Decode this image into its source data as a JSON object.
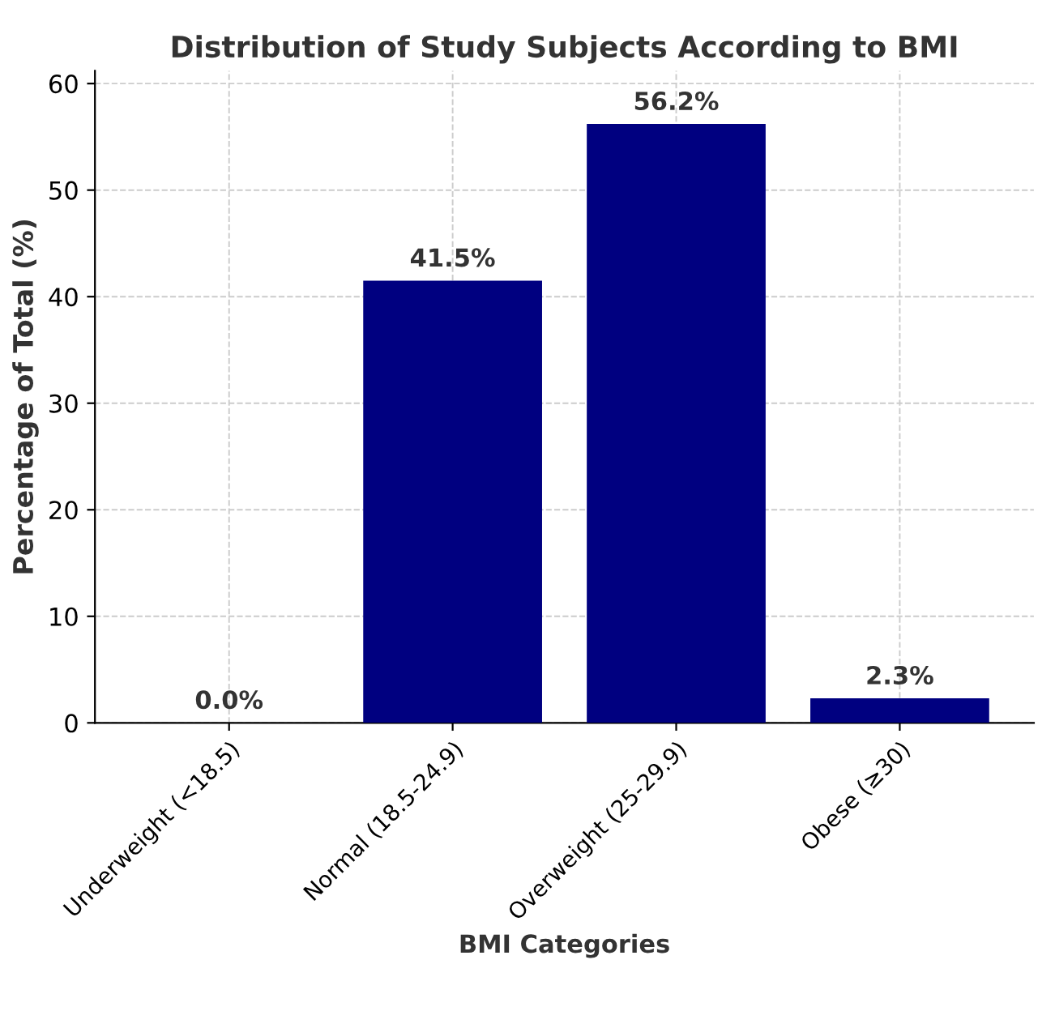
{
  "chart_data": {
    "type": "bar",
    "title": "Distribution of Study Subjects According to BMI",
    "xlabel": "BMI Categories",
    "ylabel": "Percentage of Total (%)",
    "categories": [
      "Underweight (<18.5)",
      "Normal (18.5-24.9)",
      "Overweight (25-29.9)",
      "Obese (≥30)"
    ],
    "values": [
      0.0,
      41.5,
      56.2,
      2.3
    ],
    "value_labels": [
      "0.0%",
      "41.5%",
      "56.2%",
      "2.3%"
    ],
    "color": "#000080",
    "ylim": [
      0,
      61.2
    ],
    "yticks": [
      0,
      10,
      20,
      30,
      40,
      50,
      60
    ],
    "grid": true,
    "line_style": "dashed"
  }
}
